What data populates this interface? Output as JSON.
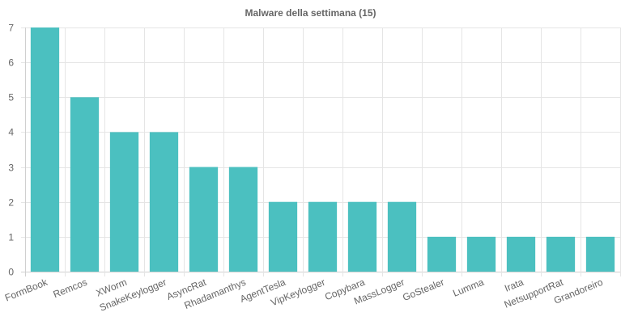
{
  "chart_data": {
    "type": "bar",
    "title": "Malware della settimana (15)",
    "xlabel": "",
    "ylabel": "",
    "categories": [
      "FormBook",
      "Remcos",
      "XWorm",
      "SnakeKeylogger",
      "AsyncRat",
      "Rhadamanthys",
      "AgentTesla",
      "VipKeylogger",
      "Copybara",
      "MassLogger",
      "GoStealer",
      "Lumma",
      "Irata",
      "NetsupportRat",
      "Grandoreiro"
    ],
    "values": [
      7,
      5,
      4,
      4,
      3,
      3,
      2,
      2,
      2,
      2,
      1,
      1,
      1,
      1,
      1
    ],
    "ylim": [
      0,
      7
    ],
    "yticks": [
      0,
      1,
      2,
      3,
      4,
      5,
      6,
      7
    ],
    "grid": true,
    "legend": "none",
    "bar_color": "#4bc0c0"
  }
}
